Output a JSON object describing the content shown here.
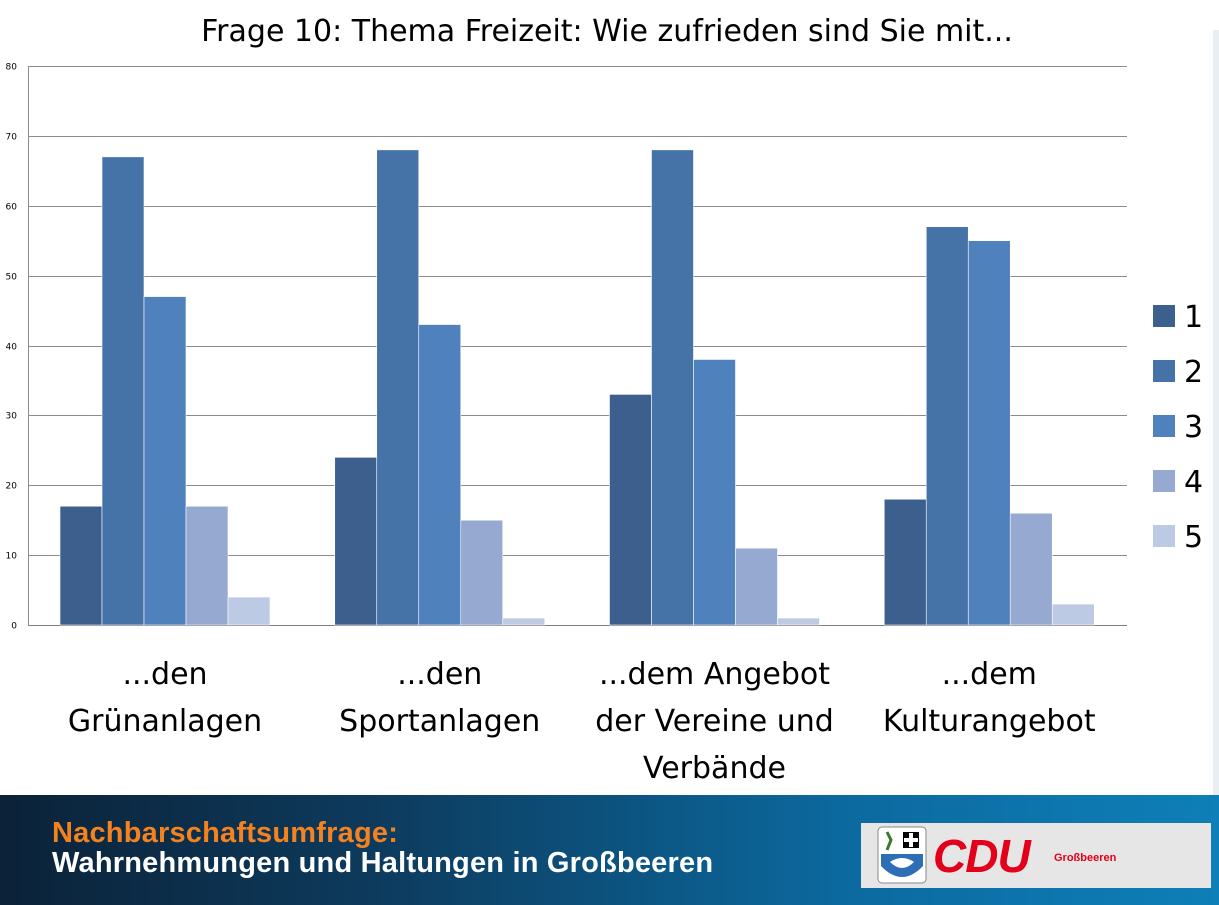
{
  "chart_data": {
    "type": "bar",
    "title": "Frage 10: Thema Freizeit: Wie zufrieden sind Sie mit...",
    "categories": [
      [
        "...den",
        "Grünanlagen"
      ],
      [
        "...den",
        "Sportanlagen"
      ],
      [
        "...dem Angebot",
        "der Vereine und",
        "Verbände"
      ],
      [
        "...dem",
        "Kulturangebot"
      ]
    ],
    "series": [
      {
        "name": "1",
        "color": "#3c5f8e",
        "values": [
          17,
          24,
          33,
          18
        ]
      },
      {
        "name": "2",
        "color": "#4572a7",
        "values": [
          67,
          68,
          68,
          57
        ]
      },
      {
        "name": "3",
        "color": "#4f81bd",
        "values": [
          47,
          43,
          38,
          55
        ]
      },
      {
        "name": "4",
        "color": "#95a9d1",
        "values": [
          17,
          15,
          11,
          16
        ]
      },
      {
        "name": "5",
        "color": "#bccbe3",
        "values": [
          4,
          1,
          1,
          3
        ]
      }
    ],
    "ylim": [
      0,
      80
    ],
    "yticks": [
      0,
      10,
      20,
      30,
      40,
      50,
      60,
      70,
      80
    ],
    "grid": true,
    "legend_position": "right"
  },
  "footer": {
    "line1": "Nachbarschaftsumfrage:",
    "line2": "Wahrnehmungen und Haltungen in Großbeeren",
    "logo_text": "CDU",
    "logo_subtext": "Großbeeren"
  }
}
